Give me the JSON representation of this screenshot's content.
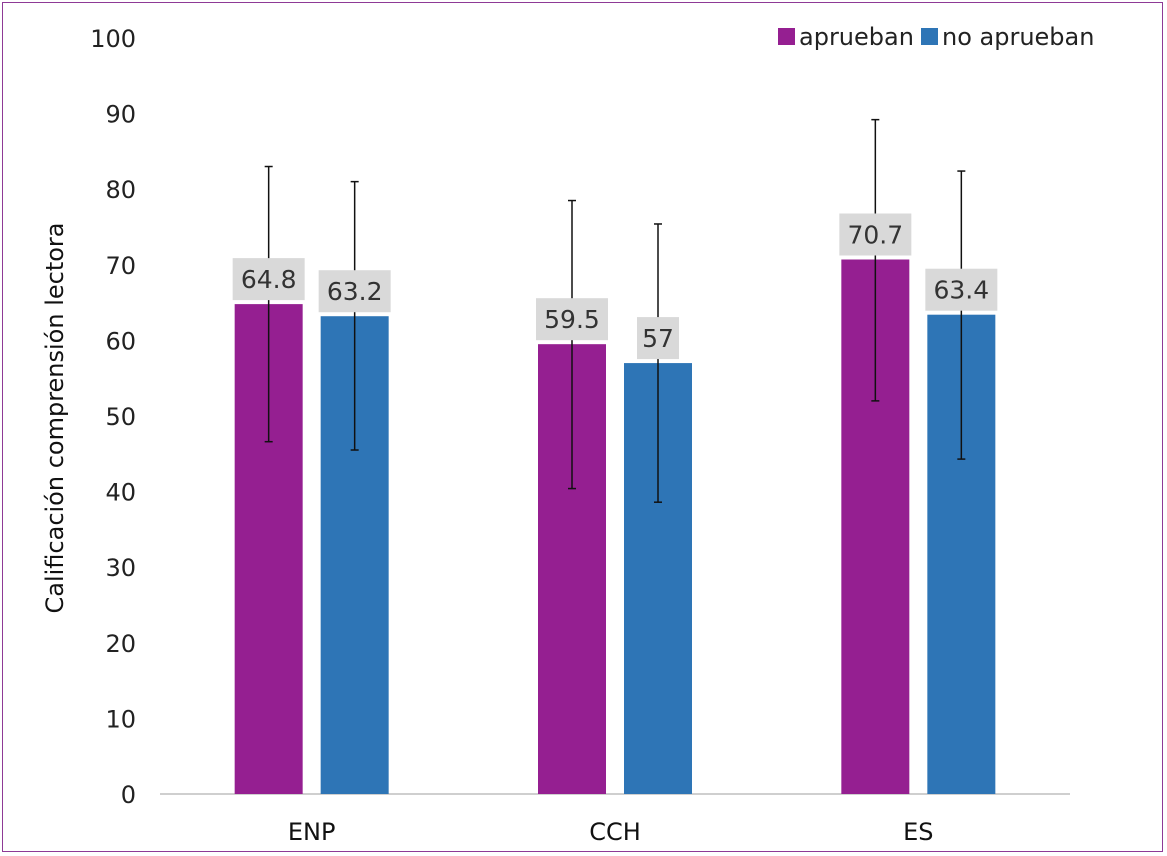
{
  "chart_data": {
    "type": "bar",
    "categories": [
      "ENP",
      "CCH",
      "ES"
    ],
    "series": [
      {
        "name": "aprueban",
        "color": "#951f91",
        "values": [
          64.8,
          59.5,
          70.7
        ],
        "error_low": [
          46.6,
          40.4,
          52.0
        ],
        "error_high": [
          83.0,
          78.5,
          89.2
        ]
      },
      {
        "name": "no aprueban",
        "color": "#2e75b6",
        "values": [
          63.2,
          57,
          63.4
        ],
        "error_low": [
          45.5,
          38.6,
          44.3
        ],
        "error_high": [
          81.0,
          75.4,
          82.4
        ]
      }
    ],
    "data_labels": [
      [
        "64.8",
        "59.5",
        "70.7"
      ],
      [
        "63.2",
        "57",
        "63.4"
      ]
    ],
    "ylabel": "Calificación comprensión lectora",
    "ylim": [
      0,
      100
    ],
    "yticks": [
      "0",
      "10",
      "20",
      "30",
      "40",
      "50",
      "60",
      "70",
      "80",
      "90",
      "100"
    ],
    "grid": false,
    "legend_position": "top-right"
  }
}
